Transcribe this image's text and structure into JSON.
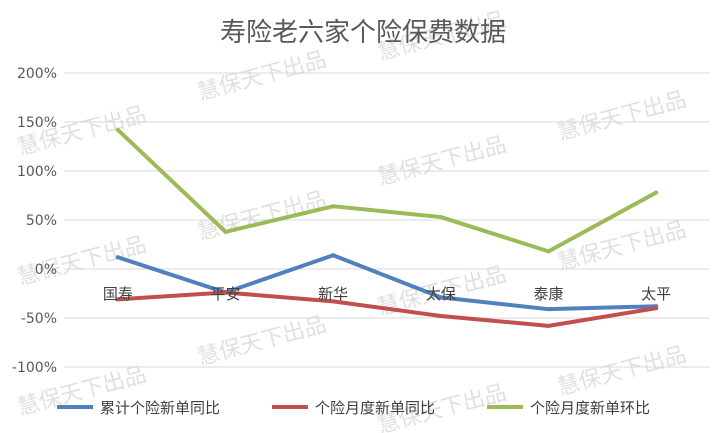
{
  "chart_data": {
    "type": "line",
    "title": "寿险老六家个险保费数据",
    "categories": [
      "国寿",
      "平安",
      "新华",
      "太保",
      "泰康",
      "太平"
    ],
    "ylim": [
      -1.0,
      2.0
    ],
    "y_ticks": [
      2.0,
      1.5,
      1.0,
      0.5,
      0.0,
      -0.5,
      -1.0
    ],
    "y_tick_labels": [
      "200%",
      "150%",
      "100%",
      "50%",
      "0%",
      "-50%",
      "-100%"
    ],
    "grid": true,
    "legend_position": "bottom",
    "series": [
      {
        "name": "累计个险新单同比",
        "color": "#4f81bd",
        "values": [
          0.12,
          -0.24,
          0.14,
          -0.29,
          -0.41,
          -0.38
        ]
      },
      {
        "name": "个险月度新单同比",
        "color": "#c0504d",
        "values": [
          -0.31,
          -0.24,
          -0.33,
          -0.48,
          -0.58,
          -0.4
        ]
      },
      {
        "name": "个险月度新单环比",
        "color": "#9bbb59",
        "values": [
          1.42,
          0.38,
          0.64,
          0.53,
          0.18,
          0.78
        ]
      }
    ]
  },
  "watermark": "慧保天下出品"
}
